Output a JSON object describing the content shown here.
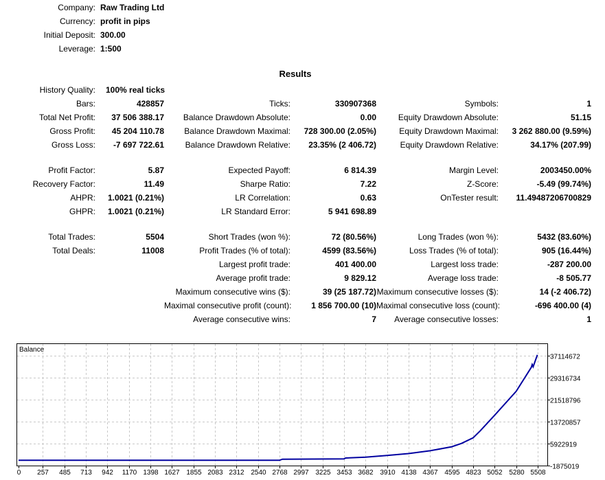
{
  "header": [
    {
      "label": "Company:",
      "value": "Raw Trading Ltd"
    },
    {
      "label": "Currency:",
      "value": "profit in pips"
    },
    {
      "label": "Initial Deposit:",
      "value": "300.00"
    },
    {
      "label": "Leverage:",
      "value": "1:500"
    }
  ],
  "results_title": "Results",
  "history_quality": {
    "label": "History Quality:",
    "value": "100% real ticks"
  },
  "sections": [
    [
      [
        "Bars:",
        "428857",
        "Ticks:",
        "330907368",
        "Symbols:",
        "1"
      ],
      [
        "Total Net Profit:",
        "37 506 388.17",
        "Balance Drawdown Absolute:",
        "0.00",
        "Equity Drawdown Absolute:",
        "51.15"
      ],
      [
        "Gross Profit:",
        "45 204 110.78",
        "Balance Drawdown Maximal:",
        "728 300.00 (2.05%)",
        "Equity Drawdown Maximal:",
        "3 262 880.00 (9.59%)"
      ],
      [
        "Gross Loss:",
        "-7 697 722.61",
        "Balance Drawdown Relative:",
        "23.35% (2 406.72)",
        "Equity Drawdown Relative:",
        "34.17% (207.99)"
      ]
    ],
    [
      [
        "Profit Factor:",
        "5.87",
        "Expected Payoff:",
        "6 814.39",
        "Margin Level:",
        "2003450.00%"
      ],
      [
        "Recovery Factor:",
        "11.49",
        "Sharpe Ratio:",
        "7.22",
        "Z-Score:",
        "-5.49 (99.74%)"
      ],
      [
        "AHPR:",
        "1.0021 (0.21%)",
        "LR Correlation:",
        "0.63",
        "OnTester result:",
        "11.49487206700829"
      ],
      [
        "GHPR:",
        "1.0021 (0.21%)",
        "LR Standard Error:",
        "5 941 698.89",
        "",
        ""
      ]
    ],
    [
      [
        "Total Trades:",
        "5504",
        "Short Trades (won %):",
        "72 (80.56%)",
        "Long Trades (won %):",
        "5432 (83.60%)"
      ],
      [
        "Total Deals:",
        "11008",
        "Profit Trades (% of total):",
        "4599 (83.56%)",
        "Loss Trades (% of total):",
        "905 (16.44%)"
      ],
      [
        "",
        "",
        "Largest profit trade:",
        "401 400.00",
        "Largest loss trade:",
        "-287 200.00"
      ],
      [
        "",
        "",
        "Average profit trade:",
        "9 829.12",
        "Average loss trade:",
        "-8 505.77"
      ],
      [
        "",
        "",
        "Maximum consecutive wins ($):",
        "39 (25 187.72)",
        "Maximum consecutive losses ($):",
        "14 (-2 406.72)"
      ],
      [
        "",
        "",
        "Maximal consecutive profit (count):",
        "1 856 700.00 (10)",
        "Maximal consecutive loss (count):",
        "-696 400.00 (4)"
      ],
      [
        "",
        "",
        "Average consecutive wins:",
        "7",
        "Average consecutive losses:",
        "1"
      ]
    ]
  ],
  "chart_data": {
    "type": "line",
    "title": "Balance",
    "xlabel": "",
    "ylabel": "",
    "x_ticks": [
      0,
      257,
      485,
      713,
      942,
      1170,
      1398,
      1627,
      1855,
      2083,
      2312,
      2540,
      2768,
      2997,
      3225,
      3453,
      3682,
      3910,
      4138,
      4367,
      4595,
      4823,
      5052,
      5280,
      5508
    ],
    "y_ticks": [
      -1875019,
      5922919,
      13720857,
      21518796,
      29316734,
      37114672
    ],
    "xlim": [
      0,
      5540
    ],
    "ylim": [
      -1875019,
      39000000
    ],
    "grid": true,
    "line_color": "#0000a0",
    "series": [
      {
        "name": "Balance",
        "x": [
          0,
          2768,
          2800,
          3453,
          3470,
          3682,
          3910,
          4138,
          4367,
          4595,
          4700,
          4823,
          4900,
          5052,
          5280,
          5440,
          5450,
          5460,
          5504
        ],
        "y": [
          300,
          300,
          400000,
          500000,
          800000,
          1100000,
          1700000,
          2400000,
          3400000,
          4800000,
          6000000,
          8000000,
          10500000,
          16000000,
          24500000,
          33000000,
          34000000,
          33200000,
          37400000
        ]
      }
    ]
  }
}
